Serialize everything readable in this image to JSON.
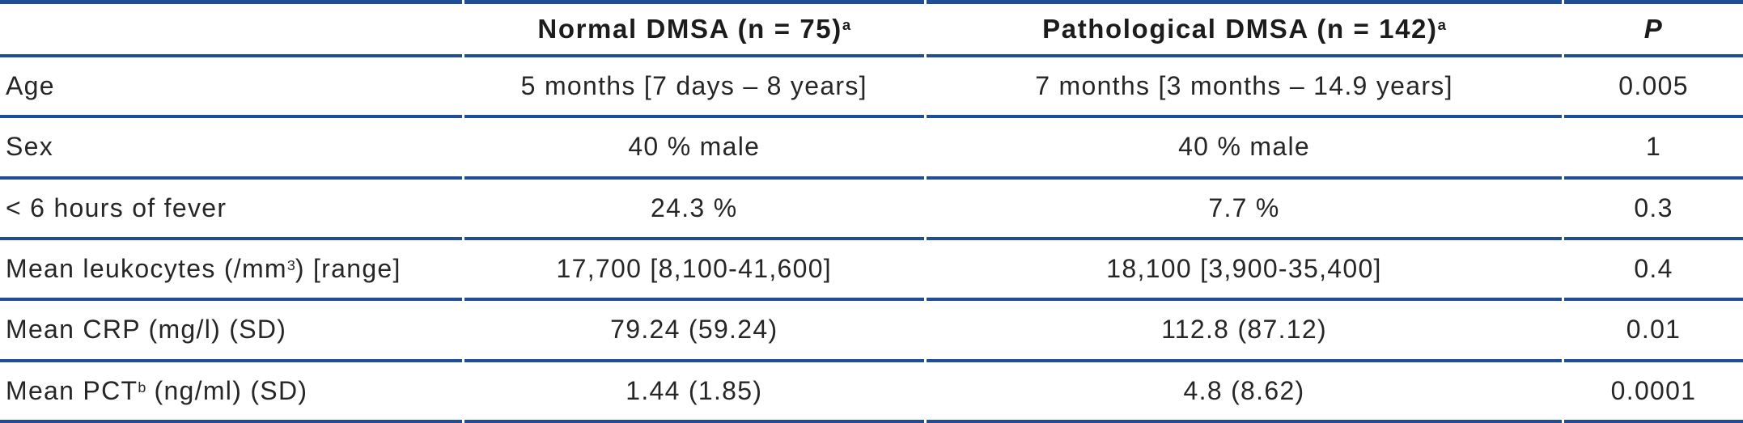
{
  "colors": {
    "rule": "#204e96",
    "text": "#262626",
    "header_text": "#1c1c1c"
  },
  "table": {
    "header": {
      "col1": "",
      "col2": {
        "text": "Normal DMSA (n = 75)",
        "sup": "a"
      },
      "col3": {
        "text": "Pathological DMSA (n = 142)",
        "sup": "a"
      },
      "col4": "P"
    },
    "rows": [
      {
        "label_pre": "Age",
        "label_sup": "",
        "label_post": "",
        "normal": "5 months [7 days – 8 years]",
        "pathological": "7 months [3 months – 14.9 years]",
        "p": "0.005"
      },
      {
        "label_pre": "Sex",
        "label_sup": "",
        "label_post": "",
        "normal": "40 % male",
        "pathological": "40 % male",
        "p": "1"
      },
      {
        "label_pre": "< 6 hours of fever",
        "label_sup": "",
        "label_post": "",
        "normal": "24.3 %",
        "pathological": "7.7 %",
        "p": "0.3"
      },
      {
        "label_pre": "Mean leukocytes (/mm",
        "label_sup": "3",
        "label_post": ") [range]",
        "normal": "17,700 [8,100-41,600]",
        "pathological": "18,100 [3,900-35,400]",
        "p": "0.4"
      },
      {
        "label_pre": "Mean CRP (mg/l) (SD)",
        "label_sup": "",
        "label_post": "",
        "normal": "79.24 (59.24)",
        "pathological": "112.8 (87.12)",
        "p": "0.01"
      },
      {
        "label_pre": "Mean PCT",
        "label_sup": "b",
        "label_post": " (ng/ml) (SD)",
        "normal": "1.44 (1.85)",
        "pathological": "4.8 (8.62)",
        "p": "0.0001"
      }
    ]
  }
}
